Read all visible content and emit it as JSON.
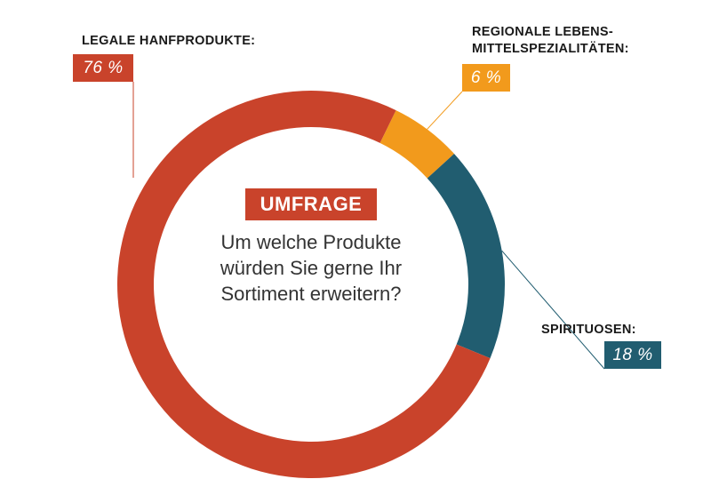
{
  "chart_data": {
    "type": "pie",
    "style": "donut",
    "badge": "UMFRAGE",
    "question_lines": [
      "Um welche Produkte",
      "würden Sie gerne Ihr",
      "Sortiment erweitern?"
    ],
    "slices": [
      {
        "label": "REGIONALE LEBENS-\nMITTELSPEZIALITÄTEN:",
        "value": 6,
        "value_label": "6 %",
        "color": "#f29a1c"
      },
      {
        "label": "SPIRITUOSEN:",
        "value": 18,
        "value_label": "18 %",
        "color": "#215d70"
      },
      {
        "label": "LEGALE HANFPRODUKTE:",
        "value": 76,
        "value_label": "76 %",
        "color": "#c9432b"
      }
    ]
  }
}
